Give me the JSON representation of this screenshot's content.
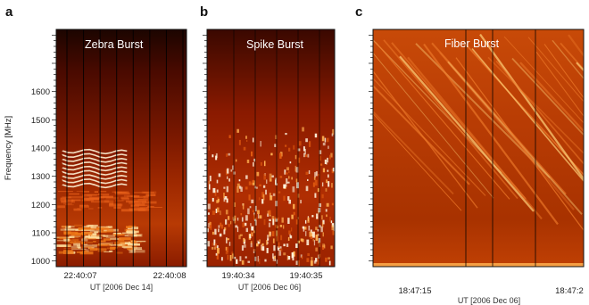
{
  "chart_data": [
    {
      "type": "heatmap",
      "panel_label": "a",
      "title": "Zebra Burst",
      "ylabel": "Frequency [MHz]",
      "ylim": [
        980,
        1820
      ],
      "yticks": [
        1000,
        1100,
        1200,
        1300,
        1400,
        1500,
        1600
      ],
      "xticks": [
        "22:40:07",
        "22:40:08"
      ],
      "xlabel": "UT [2006 Dec 14]",
      "colormap": [
        "#120300",
        "#5a0c00",
        "#a32400",
        "#e05a08",
        "#ffd27a",
        "#ffffff"
      ],
      "features": {
        "zebra_stripes": {
          "count": 9,
          "freq_range": [
            1270,
            1390
          ],
          "time_range": [
            0.05,
            0.55
          ]
        },
        "bright_band_low": {
          "freq_range": [
            1030,
            1130
          ]
        },
        "bright_band_mid": {
          "freq_range": [
            1180,
            1250
          ]
        },
        "vertical_gaps": 8
      }
    },
    {
      "type": "heatmap",
      "panel_label": "b",
      "title": "Spike Burst",
      "ylim": [
        980,
        1820
      ],
      "xticks": [
        "19:40:34",
        "19:40:35"
      ],
      "xlabel": "UT [2006 Dec 06]",
      "colormap": [
        "#120300",
        "#5a0c00",
        "#a32400",
        "#e05a08",
        "#ffd27a",
        "#ffffff"
      ],
      "features": {
        "spike_count": 420,
        "freq_range": [
          1000,
          1480
        ],
        "vertical_gaps": 5
      }
    },
    {
      "type": "heatmap",
      "panel_label": "c",
      "title": "Fiber Burst",
      "ylim": [
        980,
        1820
      ],
      "xticks": [
        "18:47:15",
        "18:47:2"
      ],
      "xlabel": "UT [2006 Dec 06]",
      "colormap": [
        "#120300",
        "#5a0c00",
        "#a32400",
        "#e05a08",
        "#ffd27a",
        "#ffffff"
      ],
      "features": {
        "fiber_count": 40,
        "fiber_drift": "negative",
        "vertical_gaps": 3
      }
    }
  ]
}
